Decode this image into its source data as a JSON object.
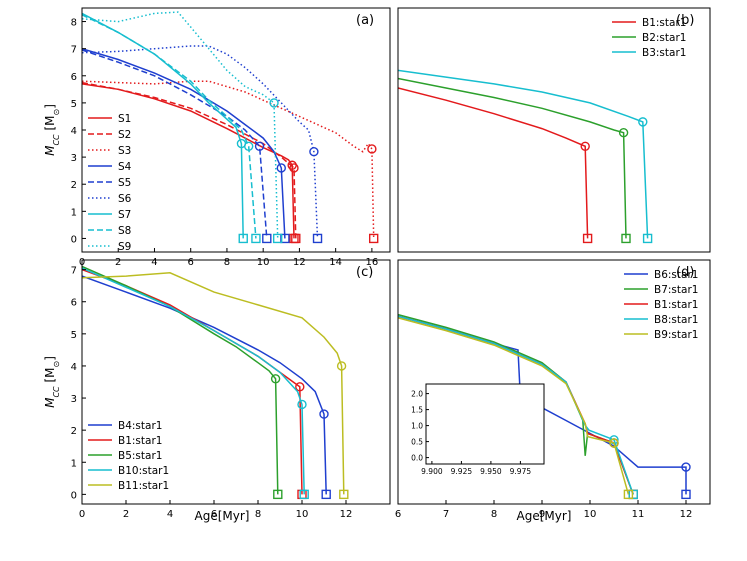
{
  "figure": {
    "xlabel": "Age[Myr]",
    "ylabel": "M",
    "ylabel_sub": "CC",
    "ylabel_unit": " [M",
    "ylabel_sun": "⊙",
    "ylabel_end": "]"
  },
  "chart_data": [
    {
      "panel": "(a)",
      "type": "line",
      "xlim": [
        0,
        17
      ],
      "ylim": [
        -0.5,
        8.5
      ],
      "xticks": [
        "0",
        "2",
        "4",
        "6",
        "8",
        "10",
        "12",
        "14",
        "16"
      ],
      "yticks": [
        "0",
        "1",
        "2",
        "3",
        "4",
        "5",
        "6",
        "7",
        "8"
      ],
      "legend_position": "middle-left",
      "series": [
        {
          "name": "S1",
          "color": "#e31a1c",
          "dash": "solid",
          "x": [
            0,
            2,
            4,
            6,
            8,
            9,
            10,
            11,
            11.4,
            11.6,
            11.7
          ],
          "y": [
            5.7,
            5.5,
            5.15,
            4.7,
            4.05,
            3.7,
            3.35,
            3.05,
            2.9,
            2.7,
            0
          ]
        },
        {
          "name": "S2",
          "color": "#e31a1c",
          "dash": "dashed",
          "x": [
            0,
            2,
            4,
            6,
            8,
            10,
            11,
            11.7,
            11.8
          ],
          "y": [
            5.75,
            5.5,
            5.2,
            4.8,
            4.2,
            3.5,
            3.0,
            2.6,
            0
          ]
        },
        {
          "name": "S3",
          "color": "#e31a1c",
          "dash": "dotted",
          "x": [
            0,
            2,
            4,
            6,
            7,
            8,
            9,
            10,
            11,
            12,
            13,
            14,
            15,
            15.5,
            15.8,
            16,
            16.1
          ],
          "y": [
            5.8,
            5.75,
            5.7,
            5.8,
            5.8,
            5.6,
            5.4,
            5.1,
            4.8,
            4.5,
            4.2,
            3.9,
            3.4,
            3.2,
            3.5,
            3.3,
            0
          ]
        },
        {
          "name": "S4",
          "color": "#1f3fcf",
          "dash": "solid",
          "x": [
            0,
            2,
            4,
            6,
            8,
            9,
            10,
            10.6,
            11,
            11.2
          ],
          "y": [
            7.0,
            6.6,
            6.1,
            5.5,
            4.7,
            4.2,
            3.7,
            3.2,
            2.6,
            0
          ]
        },
        {
          "name": "S5",
          "color": "#1f3fcf",
          "dash": "dashed",
          "x": [
            0,
            2,
            4,
            6,
            8,
            9,
            9.8,
            10.2
          ],
          "y": [
            6.95,
            6.5,
            6.0,
            5.3,
            4.5,
            4.0,
            3.4,
            0
          ]
        },
        {
          "name": "S6",
          "color": "#1f3fcf",
          "dash": "dotted",
          "x": [
            0,
            2,
            4,
            6,
            7,
            8,
            9,
            10,
            11,
            12,
            12.5,
            12.8,
            13.0
          ],
          "y": [
            6.85,
            6.9,
            7.0,
            7.1,
            7.1,
            6.8,
            6.3,
            5.7,
            5.0,
            4.3,
            4.0,
            3.2,
            0
          ]
        },
        {
          "name": "S7",
          "color": "#17becf",
          "dash": "solid",
          "x": [
            0,
            2,
            4,
            6,
            7,
            8,
            8.5,
            8.8,
            8.9
          ],
          "y": [
            8.3,
            7.6,
            6.8,
            5.7,
            5.0,
            4.4,
            4.1,
            3.5,
            0
          ]
        },
        {
          "name": "S8",
          "color": "#17becf",
          "dash": "dashed",
          "x": [
            0,
            2,
            4,
            6,
            7,
            8,
            8.8,
            9.2,
            9.6
          ],
          "y": [
            8.25,
            7.6,
            6.8,
            5.8,
            5.1,
            4.5,
            4.0,
            3.4,
            0
          ]
        },
        {
          "name": "S9",
          "color": "#17becf",
          "dash": "dotted",
          "x": [
            0,
            2,
            4,
            5.3,
            6,
            7,
            8,
            9,
            10,
            10.6,
            10.8
          ],
          "y": [
            8.1,
            8.0,
            8.3,
            8.35,
            7.8,
            7.0,
            6.2,
            5.6,
            5.3,
            5.0,
            0
          ]
        }
      ]
    },
    {
      "panel": "(b)",
      "type": "line",
      "xlim": [
        6,
        12.5
      ],
      "ylim": [
        -0.5,
        8.5
      ],
      "xticks": [],
      "yticks": [],
      "legend_position": "top-left",
      "series": [
        {
          "name": "B1:star1",
          "color": "#e31a1c",
          "dash": "solid",
          "x": [
            6,
            7,
            8,
            9,
            9.5,
            9.9,
            9.95
          ],
          "y": [
            5.55,
            5.1,
            4.6,
            4.05,
            3.7,
            3.4,
            0
          ]
        },
        {
          "name": "B2:star1",
          "color": "#2ca02c",
          "dash": "solid",
          "x": [
            6,
            7,
            8,
            9,
            10,
            10.5,
            10.7,
            10.75
          ],
          "y": [
            5.9,
            5.55,
            5.2,
            4.8,
            4.3,
            4.0,
            3.9,
            0
          ]
        },
        {
          "name": "B3:star1",
          "color": "#17becf",
          "dash": "solid",
          "x": [
            6,
            7,
            8,
            9,
            10,
            10.8,
            11.1,
            11.2
          ],
          "y": [
            6.2,
            5.95,
            5.7,
            5.4,
            5.0,
            4.5,
            4.3,
            0
          ]
        }
      ]
    },
    {
      "panel": "(c)",
      "type": "line",
      "xlim": [
        0,
        14
      ],
      "ylim": [
        -0.3,
        7.3
      ],
      "xticks": [
        "0",
        "2",
        "4",
        "6",
        "8",
        "10",
        "12"
      ],
      "yticks": [
        "0",
        "1",
        "2",
        "3",
        "4",
        "5",
        "6",
        "7"
      ],
      "legend_position": "bottom-left",
      "series": [
        {
          "name": "B4:star1",
          "color": "#1f3fcf",
          "dash": "solid",
          "x": [
            0,
            2,
            4,
            6,
            8,
            9,
            10,
            10.6,
            11,
            11.1
          ],
          "y": [
            6.8,
            6.3,
            5.8,
            5.2,
            4.5,
            4.1,
            3.6,
            3.2,
            2.5,
            0
          ]
        },
        {
          "name": "B1:star1",
          "color": "#e31a1c",
          "dash": "solid",
          "x": [
            0,
            2,
            4,
            6,
            8,
            9,
            9.6,
            9.9,
            10.0
          ],
          "y": [
            7.0,
            6.5,
            5.9,
            5.1,
            4.3,
            3.8,
            3.5,
            3.35,
            0
          ]
        },
        {
          "name": "B5:star1",
          "color": "#2ca02c",
          "dash": "solid",
          "x": [
            0,
            2,
            4,
            6,
            7,
            8,
            8.5,
            8.8,
            8.9
          ],
          "y": [
            7.1,
            6.5,
            5.85,
            5.0,
            4.6,
            4.1,
            3.85,
            3.6,
            0
          ]
        },
        {
          "name": "B10:star1",
          "color": "#17becf",
          "dash": "solid",
          "x": [
            0,
            2,
            4,
            6,
            8,
            9,
            9.8,
            10.0,
            10.1
          ],
          "y": [
            7.05,
            6.45,
            5.85,
            5.1,
            4.3,
            3.8,
            3.2,
            2.8,
            0
          ]
        },
        {
          "name": "B11:star1",
          "color": "#bcbd22",
          "dash": "solid",
          "x": [
            0,
            2,
            4,
            6,
            8,
            10,
            11,
            11.6,
            11.8,
            11.9
          ],
          "y": [
            6.75,
            6.8,
            6.9,
            6.3,
            5.9,
            5.5,
            4.9,
            4.4,
            4.0,
            0
          ]
        }
      ]
    },
    {
      "panel": "(d)",
      "type": "line",
      "xlim": [
        6,
        12.5
      ],
      "ylim": [
        -0.3,
        7.3
      ],
      "xticks": [
        "6",
        "7",
        "8",
        "9",
        "10",
        "11",
        "12"
      ],
      "yticks": [],
      "legend_position": "top-right",
      "inset": {
        "xticks": [
          "9.900",
          "9.925",
          "9.950",
          "9.975"
        ],
        "yticks": [
          "0.0",
          "0.5",
          "1.0",
          "1.5",
          "2.0"
        ],
        "xlim": [
          9.895,
          9.995
        ],
        "ylim": [
          -0.2,
          2.3
        ]
      },
      "series": [
        {
          "name": "B6:star1",
          "color": "#1f3fcf",
          "dash": "solid",
          "x": [
            6,
            7,
            8,
            8.5,
            8.55,
            9,
            9.5,
            10,
            10.5,
            11,
            11.5,
            12,
            12.0
          ],
          "y": [
            5.55,
            5.15,
            4.7,
            4.5,
            3.0,
            2.7,
            2.3,
            1.9,
            1.5,
            0.85,
            0.85,
            0.85,
            0
          ]
        },
        {
          "name": "B7:star1",
          "color": "#2ca02c",
          "dash": "solid",
          "x": [
            6,
            7,
            8,
            9,
            9.5,
            9.85,
            9.9,
            9.95,
            10.5,
            10.9
          ],
          "y": [
            5.6,
            5.2,
            4.75,
            4.1,
            3.5,
            2.3,
            1.2,
            1.9,
            1.6,
            0
          ]
        },
        {
          "name": "B1:star1",
          "color": "#e31a1c",
          "dash": "solid",
          "x": [
            6,
            7,
            8,
            9,
            9.5,
            9.9,
            9.95,
            10.5,
            10.9
          ],
          "y": [
            5.55,
            5.15,
            4.7,
            4.05,
            3.5,
            2.2,
            1.9,
            1.6,
            0
          ]
        },
        {
          "name": "B8:star1",
          "color": "#17becf",
          "dash": "solid",
          "x": [
            6,
            7,
            8,
            9,
            9.5,
            9.9,
            9.98,
            10.5,
            10.9
          ],
          "y": [
            5.55,
            5.15,
            4.7,
            4.05,
            3.5,
            2.15,
            2.0,
            1.7,
            0
          ]
        },
        {
          "name": "B9:star1",
          "color": "#bcbd22",
          "dash": "solid",
          "x": [
            6,
            7,
            8,
            9,
            9.5,
            9.9,
            9.95,
            10.5,
            10.8
          ],
          "y": [
            5.5,
            5.1,
            4.65,
            4.0,
            3.45,
            2.2,
            1.8,
            1.6,
            0
          ]
        }
      ]
    }
  ]
}
